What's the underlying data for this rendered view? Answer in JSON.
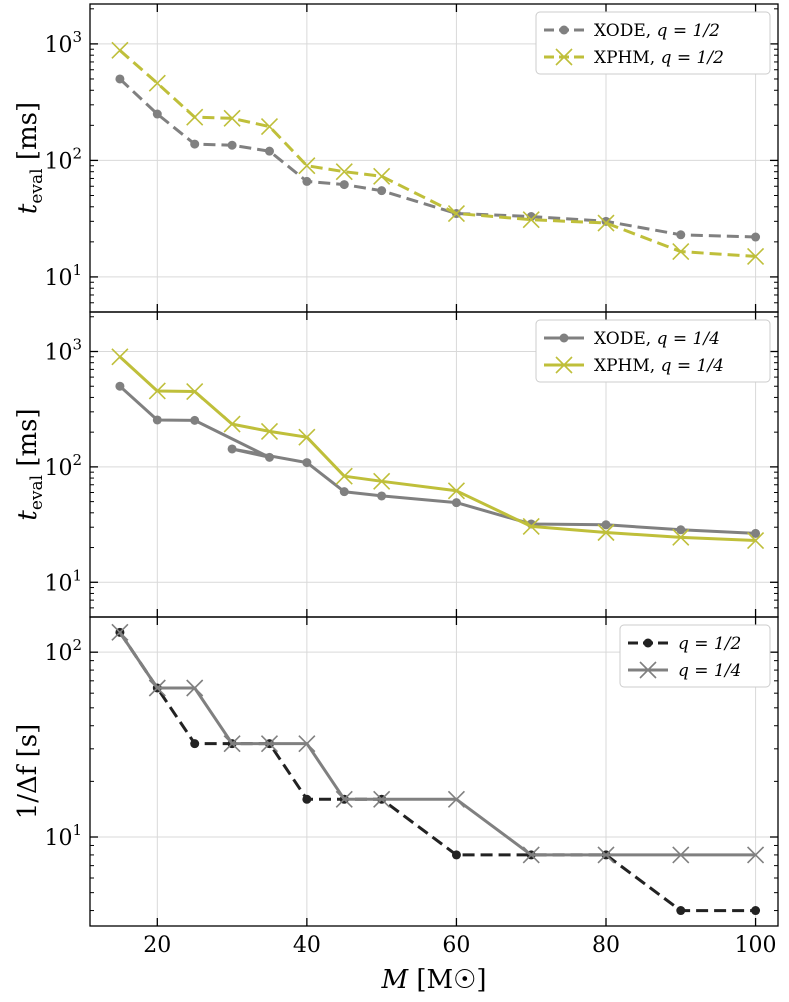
{
  "chart_data": [
    {
      "type": "line",
      "ylabel": "t_eval [ms]",
      "ylabel_main": "t",
      "ylabel_sub": "eval",
      "ylabel_unit": "[ms]",
      "yscale": "log",
      "ylim": [
        5,
        2200
      ],
      "xlim": [
        11,
        103
      ],
      "yticks": [
        {
          "value": 10,
          "base": "10",
          "exp": "1"
        },
        {
          "value": 100,
          "base": "10",
          "exp": "2"
        },
        {
          "value": 1000,
          "base": "10",
          "exp": "3"
        }
      ],
      "grid": true,
      "legend": "top-right",
      "series": [
        {
          "name": "XODE, q = 1/2",
          "label_text": "XODE,",
          "label_q": "q = 1/2",
          "color": "#808080",
          "linestyle": "dashed",
          "marker": "dot",
          "x": [
            15,
            20,
            25,
            30,
            35,
            40,
            45,
            50,
            60,
            70,
            80,
            90,
            100
          ],
          "values": [
            500,
            250,
            138,
            135,
            120,
            66,
            62,
            55,
            35,
            33,
            30,
            23,
            22
          ]
        },
        {
          "name": "XPHM, q = 1/2",
          "label_text": "XPHM,",
          "label_q": "q = 1/2",
          "color": "#bfbf3a",
          "linestyle": "dashed",
          "marker": "x",
          "x": [
            15,
            20,
            25,
            30,
            35,
            40,
            45,
            50,
            60,
            70,
            80,
            90,
            100
          ],
          "values": [
            880,
            460,
            235,
            230,
            195,
            90,
            80,
            73,
            35,
            31,
            29,
            16.5,
            15
          ]
        }
      ]
    },
    {
      "type": "line",
      "ylabel": "t_eval [ms]",
      "ylabel_main": "t",
      "ylabel_sub": "eval",
      "ylabel_unit": "[ms]",
      "yscale": "log",
      "ylim": [
        5,
        2200
      ],
      "xlim": [
        11,
        103
      ],
      "yticks": [
        {
          "value": 10,
          "base": "10",
          "exp": "1"
        },
        {
          "value": 100,
          "base": "10",
          "exp": "2"
        },
        {
          "value": 1000,
          "base": "10",
          "exp": "3"
        }
      ],
      "grid": true,
      "legend": "top-right",
      "series": [
        {
          "name": "XODE, q = 1/4",
          "label_text": "XODE,",
          "label_q": "q = 1/4",
          "color": "#808080",
          "linestyle": "solid",
          "marker": "dot",
          "x": [
            15,
            20,
            25,
            35,
            30,
            40,
            45,
            50,
            60,
            70,
            80,
            90,
            100
          ],
          "values": [
            500,
            255,
            253,
            121,
            143,
            109,
            61,
            56,
            49,
            32,
            31.5,
            28.5,
            26.5
          ]
        },
        {
          "name": "XPHM, q = 1/4",
          "label_text": "XPHM,",
          "label_q": "q = 1/4",
          "color": "#bfbf3a",
          "linestyle": "solid",
          "marker": "x",
          "x": [
            15,
            20,
            25,
            30,
            35,
            40,
            45,
            50,
            60,
            70,
            80,
            90,
            100
          ],
          "values": [
            900,
            455,
            450,
            235,
            203,
            181,
            83,
            75,
            62,
            30.5,
            27,
            24.5,
            23
          ]
        }
      ]
    },
    {
      "type": "line",
      "ylabel": "1/Δf [s]",
      "ylabel_main": "1/Δf",
      "ylabel_unit": "[s]",
      "yscale": "log",
      "ylim": [
        3.3,
        155
      ],
      "xlim": [
        11,
        103
      ],
      "yticks": [
        {
          "value": 10,
          "base": "10",
          "exp": "1"
        },
        {
          "value": 100,
          "base": "10",
          "exp": "2"
        }
      ],
      "xticks": [
        20,
        40,
        60,
        80,
        100
      ],
      "xlabel": "M [M☉]",
      "xlabel_main": "M",
      "xlabel_unit": "[M☉]",
      "grid": true,
      "legend": "top-right",
      "series": [
        {
          "name": "q = 1/2",
          "label_q": "q = 1/2",
          "color": "#222222",
          "linestyle": "dashed",
          "marker": "dot",
          "x": [
            15,
            20,
            25,
            30,
            35,
            40,
            45,
            50,
            60,
            70,
            80,
            90,
            100
          ],
          "values": [
            128,
            64,
            32,
            32,
            32,
            16,
            16,
            16,
            8,
            8,
            8,
            4,
            4
          ]
        },
        {
          "name": "q = 1/4",
          "label_q": "q = 1/4",
          "color": "#808080",
          "linestyle": "solid",
          "marker": "x",
          "x": [
            15,
            20,
            25,
            30,
            35,
            40,
            45,
            50,
            60,
            70,
            80,
            90,
            100
          ],
          "values": [
            128,
            64,
            64,
            32,
            32,
            32,
            16,
            16,
            16,
            8,
            8,
            8,
            8
          ]
        }
      ]
    }
  ]
}
